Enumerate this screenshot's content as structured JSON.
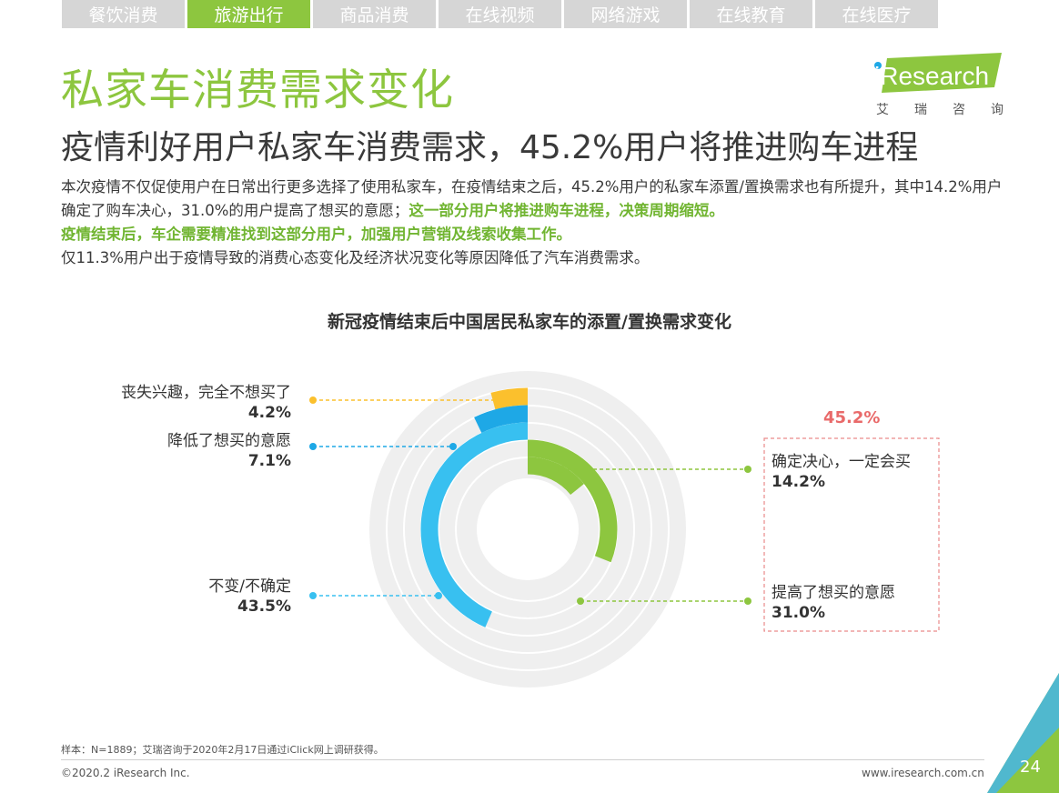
{
  "tabs": [
    "餐饮消费",
    "旅游出行",
    "商品消费",
    "在线视频",
    "网络游戏",
    "在线教育",
    "在线医疗"
  ],
  "active_tab": 1,
  "title": "私家车消费需求变化",
  "subtitle": "疫情利好用户私家车消费需求，45.2%用户将推进购车进程",
  "body": {
    "p1": "本次疫情不仅促使用户在日常出行更多选择了使用私家车，在疫情结束之后，45.2%用户的私家车添置/置换需求也有所提升，其中14.2%用户确定了购车决心，31.0%的用户提高了想买的意愿；",
    "p1_highlight": "这一部分用户将推进购车进程，决策周期缩短。",
    "p2_highlight": "疫情结束后，车企需要精准找到这部分用户，加强用户营销及线索收集工作。",
    "p3": "仅11.3%用户出于疫情导致的消费心态变化及经济状况变化等原因降低了汽车消费需求。"
  },
  "logo": {
    "text": "iResearch",
    "sub": [
      "艾",
      "瑞",
      "咨",
      "询"
    ]
  },
  "chart_data": {
    "type": "radial-bar",
    "title": "新冠疫情结束后中国居民私家车的添置/置换需求变化",
    "series": [
      {
        "name": "丧失兴趣，完全不想买了",
        "value": 4.2,
        "value_label": "4.2%",
        "color": "#fbc02d"
      },
      {
        "name": "降低了想买的意愿",
        "value": 7.1,
        "value_label": "7.1%",
        "color": "#1ea8e6"
      },
      {
        "name": "不变/不确定",
        "value": 43.5,
        "value_label": "43.5%",
        "color": "#38c0f0"
      },
      {
        "name": "确定决心，一定会买",
        "value": 14.2,
        "value_label": "14.2%",
        "color": "#8dc63f"
      },
      {
        "name": "提高了想买的意愿",
        "value": 31.0,
        "value_label": "31.0%",
        "color": "#8dc63f"
      }
    ],
    "group_total_label": "45.2%"
  },
  "footer": {
    "note": "样本：N=1889；艾瑞咨询于2020年2月17日通过iClick网上调研获得。",
    "copyright": "©2020.2 iResearch Inc.",
    "url": "www.iresearch.com.cn",
    "page": "24"
  }
}
